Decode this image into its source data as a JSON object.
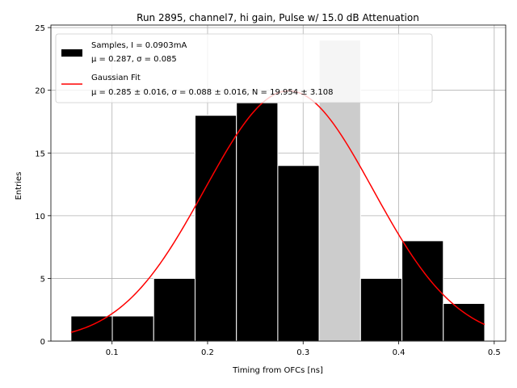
{
  "chart_data": {
    "type": "bar",
    "title": "Run 2895, channel7, hi gain, Pulse w/ 15.0 dB Attenuation",
    "xlabel": "Timing from OFCs [ns]",
    "ylabel": "Entries",
    "xlim": [
      0.036,
      0.512
    ],
    "ylim": [
      0,
      25.2
    ],
    "xticks": [
      "0.1",
      "0.2",
      "0.3",
      "0.4",
      "0.5"
    ],
    "xtick_values": [
      0.1,
      0.2,
      0.3,
      0.4,
      0.5
    ],
    "yticks": [
      "0",
      "5",
      "10",
      "15",
      "20",
      "25"
    ],
    "ytick_values": [
      0,
      5,
      10,
      15,
      20,
      25
    ],
    "grid": true,
    "legend_position": "top-left",
    "histogram": {
      "name_line1": "Samples, I = 0.0903mA",
      "name_line2": "μ = 0.287, σ = 0.085",
      "bin_edges": [
        0.057,
        0.1003,
        0.1436,
        0.1869,
        0.2302,
        0.2735,
        0.3168,
        0.3601,
        0.4034,
        0.4467,
        0.49
      ],
      "counts": [
        2,
        2,
        5,
        18,
        19,
        14,
        24,
        5,
        8,
        3
      ],
      "colors": [
        "#000000",
        "#000000",
        "#000000",
        "#000000",
        "#000000",
        "#000000",
        "#cccccc",
        "#000000",
        "#000000",
        "#000000"
      ]
    },
    "fit": {
      "name_line1": "Gaussian Fit",
      "name_line2": "μ = 0.285 ± 0.016, σ = 0.088 ± 0.016, N = 19.954 ± 3.108",
      "mu": 0.285,
      "sigma": 0.088,
      "amplitude": 19.954,
      "x_range": [
        0.057,
        0.49
      ],
      "color": "#ff0000"
    }
  }
}
